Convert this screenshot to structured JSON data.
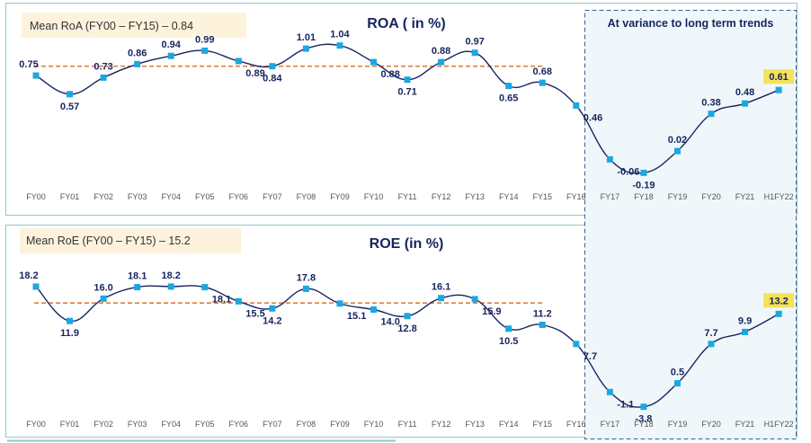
{
  "variance_box": {
    "title": "At variance to long term trends"
  },
  "colors": {
    "line": "#17245e",
    "marker": "#1ba7e0",
    "mean_line": "#e0803a",
    "highlight": "#f6e15a",
    "frame": "#8fc9c9",
    "mean_box": "#fdf3dc"
  },
  "chart_data": [
    {
      "type": "line",
      "title": "ROA ( in %)",
      "mean_label": "Mean RoA (FY00 – FY15) – 0.84",
      "mean_value": 0.84,
      "mean_range": [
        "FY00",
        "FY15"
      ],
      "ylim": [
        -0.3,
        1.15
      ],
      "categories": [
        "FY00",
        "FY01",
        "FY02",
        "FY03",
        "FY04",
        "FY05",
        "FY06",
        "FY07",
        "FY08",
        "FY09",
        "FY10",
        "FY11",
        "FY12",
        "FY13",
        "FY14",
        "FY15",
        "FY16",
        "FY17",
        "FY18",
        "FY19",
        "FY20",
        "FY21",
        "H1FY22"
      ],
      "values": [
        0.75,
        0.57,
        0.73,
        0.86,
        0.94,
        0.99,
        0.89,
        0.84,
        1.01,
        1.04,
        0.88,
        0.71,
        0.88,
        0.97,
        0.65,
        0.68,
        0.46,
        -0.06,
        -0.19,
        0.02,
        0.38,
        0.48,
        0.61
      ],
      "labels": [
        "0.75",
        "0.57",
        "0.73",
        "0.86",
        "0.94",
        "0.99",
        "0.89",
        "0.84",
        "1.01",
        "1.04",
        "0.88",
        "0.71",
        "0.88",
        "0.97",
        "0.65",
        "0.68",
        "0.46",
        "-0.06",
        "-0.19",
        "0.02",
        "0.38",
        "0.48",
        "0.61"
      ],
      "highlight_index": 22
    },
    {
      "type": "line",
      "title": "ROE (in %)",
      "mean_label": "Mean RoE (FY00 – FY15) – 15.2",
      "mean_value": 15.2,
      "mean_range": [
        "FY00",
        "FY15"
      ],
      "ylim": [
        -5,
        20
      ],
      "categories": [
        "FY00",
        "FY01",
        "FY02",
        "FY03",
        "FY04",
        "FY05",
        "FY06",
        "FY07",
        "FY08",
        "FY09",
        "FY10",
        "FY11",
        "FY12",
        "FY13",
        "FY14",
        "FY15",
        "FY16",
        "FY17",
        "FY18",
        "FY19",
        "FY20",
        "FY21",
        "H1FY22"
      ],
      "values": [
        18.2,
        11.9,
        16.0,
        18.1,
        18.2,
        18.1,
        15.5,
        14.2,
        17.8,
        15.1,
        14.0,
        12.8,
        16.1,
        15.9,
        10.5,
        11.2,
        7.7,
        -1.1,
        -3.8,
        0.5,
        7.7,
        9.9,
        13.2
      ],
      "labels": [
        "18.2",
        "11.9",
        "16.0",
        "18.1",
        "18.2",
        "18.1",
        "15.5",
        "14.2",
        "17.8",
        "15.1",
        "14.0",
        "12.8",
        "16.1",
        "15.9",
        "10.5",
        "11.2",
        "7.7",
        "-1.1",
        "-3.8",
        "0.5",
        "7.7",
        "9.9",
        "13.2"
      ],
      "highlight_index": 22
    }
  ]
}
